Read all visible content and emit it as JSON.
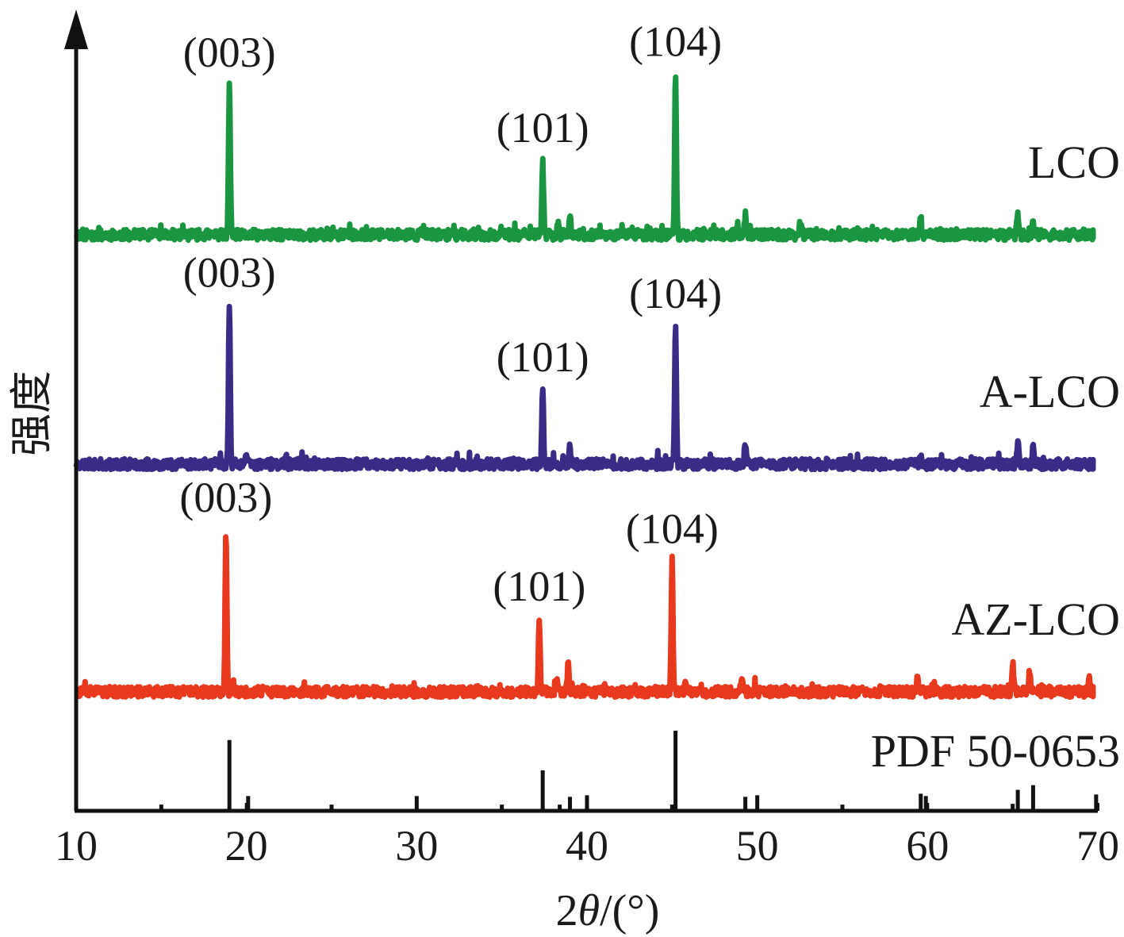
{
  "chart_data": {
    "type": "line",
    "title": "",
    "xlabel": "2θ/(°)",
    "xlabel_parts": {
      "pre": "2",
      "theta": "θ",
      "post": "/(°)"
    },
    "ylabel": "强度",
    "xlim": [
      10,
      70
    ],
    "xticks": [
      10,
      20,
      30,
      40,
      50,
      60,
      70
    ],
    "grid": false,
    "legend": "none (series labelled at right end of each trace)",
    "series": [
      {
        "name": "LCO",
        "color": "#1a9641",
        "noise_seed": 11,
        "peaks": [
          {
            "x": 19.0,
            "h": 1.0,
            "label": "(003)"
          },
          {
            "x": 37.4,
            "h": 0.5,
            "label": "(101)"
          },
          {
            "x": 38.3,
            "h": 0.09
          },
          {
            "x": 39.0,
            "h": 0.12
          },
          {
            "x": 45.2,
            "h": 1.07,
            "label": "(104)"
          },
          {
            "x": 49.3,
            "h": 0.14
          },
          {
            "x": 52.6,
            "h": 0.06
          },
          {
            "x": 59.6,
            "h": 0.11
          },
          {
            "x": 65.3,
            "h": 0.16
          },
          {
            "x": 66.2,
            "h": 0.11
          }
        ]
      },
      {
        "name": "A-LCO",
        "color": "#3b2a86",
        "noise_seed": 23,
        "peaks": [
          {
            "x": 19.0,
            "h": 1.06,
            "label": "(003)"
          },
          {
            "x": 20.0,
            "h": 0.07
          },
          {
            "x": 37.4,
            "h": 0.5,
            "label": "(101)"
          },
          {
            "x": 39.0,
            "h": 0.11
          },
          {
            "x": 45.2,
            "h": 0.92,
            "label": "(104)"
          },
          {
            "x": 49.3,
            "h": 0.15
          },
          {
            "x": 59.6,
            "h": 0.08
          },
          {
            "x": 65.3,
            "h": 0.14
          },
          {
            "x": 66.2,
            "h": 0.1
          }
        ]
      },
      {
        "name": "AZ-LCO",
        "color": "#e8381e",
        "noise_seed": 37,
        "peaks": [
          {
            "x": 18.8,
            "h": 1.08,
            "label": "(003)"
          },
          {
            "x": 37.2,
            "h": 0.49,
            "label": "(101)"
          },
          {
            "x": 38.2,
            "h": 0.08
          },
          {
            "x": 38.9,
            "h": 0.18
          },
          {
            "x": 45.0,
            "h": 0.87,
            "label": "(104)"
          },
          {
            "x": 45.8,
            "h": 0.07
          },
          {
            "x": 49.1,
            "h": 0.11
          },
          {
            "x": 59.4,
            "h": 0.09
          },
          {
            "x": 65.0,
            "h": 0.18
          },
          {
            "x": 66.0,
            "h": 0.15
          },
          {
            "x": 69.5,
            "h": 0.08
          }
        ]
      },
      {
        "name": "PDF 50-0653",
        "color": "#111111",
        "type": "stick",
        "sticks": [
          {
            "x": 15.0,
            "h": 0.06
          },
          {
            "x": 19.0,
            "h": 0.89
          },
          {
            "x": 20.1,
            "h": 0.17
          },
          {
            "x": 25.0,
            "h": 0.06
          },
          {
            "x": 30.0,
            "h": 0.17
          },
          {
            "x": 35.0,
            "h": 0.06
          },
          {
            "x": 37.4,
            "h": 0.5
          },
          {
            "x": 38.4,
            "h": 0.06
          },
          {
            "x": 39.0,
            "h": 0.16
          },
          {
            "x": 40.0,
            "h": 0.18
          },
          {
            "x": 45.0,
            "h": 0.06
          },
          {
            "x": 45.2,
            "h": 1.01
          },
          {
            "x": 49.3,
            "h": 0.16
          },
          {
            "x": 50.0,
            "h": 0.18
          },
          {
            "x": 55.0,
            "h": 0.06
          },
          {
            "x": 59.6,
            "h": 0.2
          },
          {
            "x": 59.9,
            "h": 0.17
          },
          {
            "x": 65.0,
            "h": 0.07
          },
          {
            "x": 65.3,
            "h": 0.25
          },
          {
            "x": 66.2,
            "h": 0.31
          },
          {
            "x": 69.9,
            "h": 0.19
          }
        ]
      }
    ]
  }
}
